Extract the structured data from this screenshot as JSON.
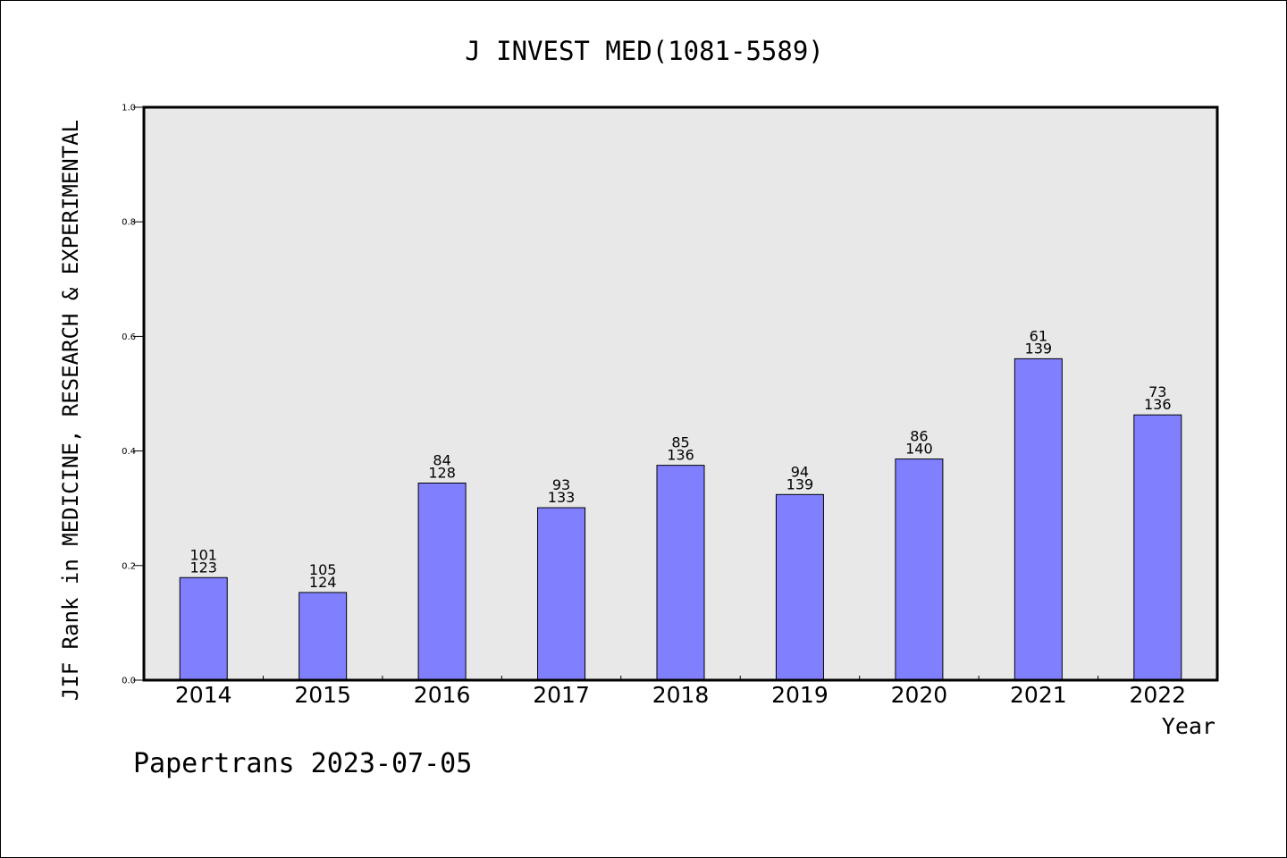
{
  "chart_data": {
    "type": "bar",
    "title": "J INVEST MED(1081-5589)",
    "xlabel": "Year",
    "ylabel": "JIF Rank in MEDICINE, RESEARCH & EXPERIMENTAL",
    "ylim": [
      0,
      1.0
    ],
    "yticks": [
      "0.0",
      "0.2",
      "0.4",
      "0.6",
      "0.8",
      "1.0"
    ],
    "grid": false,
    "bar_color": "#8080ff",
    "plot_background": "#e8e8e8",
    "categories": [
      "2014",
      "2015",
      "2016",
      "2017",
      "2018",
      "2019",
      "2020",
      "2021",
      "2022"
    ],
    "values": [
      0.179,
      0.153,
      0.344,
      0.301,
      0.375,
      0.324,
      0.386,
      0.561,
      0.463
    ],
    "ranks": [
      "101",
      "105",
      "84",
      "93",
      "85",
      "94",
      "86",
      "61",
      "73"
    ],
    "totals": [
      "123",
      "124",
      "128",
      "133",
      "136",
      "139",
      "140",
      "139",
      "136"
    ]
  },
  "footer": "Papertrans 2023-07-05"
}
